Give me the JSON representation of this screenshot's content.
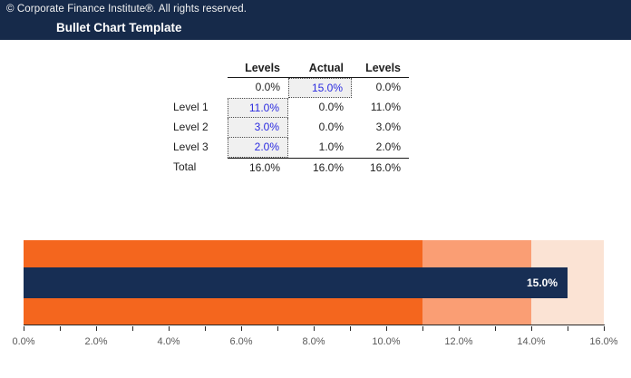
{
  "header": {
    "copyright": "© Corporate Finance Institute®. All rights reserved.",
    "title": "Bullet Chart Template",
    "background": "#162A4A"
  },
  "table": {
    "columns": [
      "",
      "Levels",
      "Actual",
      "Levels"
    ],
    "rows": [
      {
        "label": "",
        "cells": [
          {
            "text": "0.0%"
          },
          {
            "text": "15.0%"
          },
          {
            "text": "0.0%"
          }
        ]
      },
      {
        "label": "Level 1",
        "cells": [
          {
            "text": "11.0%"
          },
          {
            "text": "0.0%"
          },
          {
            "text": "11.0%"
          }
        ]
      },
      {
        "label": "Level 2",
        "cells": [
          {
            "text": "3.0%"
          },
          {
            "text": "0.0%"
          },
          {
            "text": "3.0%"
          }
        ]
      },
      {
        "label": "Level 3",
        "cells": [
          {
            "text": "2.0%"
          },
          {
            "text": "1.0%"
          },
          {
            "text": "2.0%"
          }
        ]
      },
      {
        "label": "Total",
        "cells": [
          {
            "text": "16.0%"
          },
          {
            "text": "16.0%"
          },
          {
            "text": "16.0%"
          }
        ]
      }
    ],
    "input_text_color": "#2B2BE0",
    "input_bg": "#F0F0F0"
  },
  "chart_data": {
    "type": "bar",
    "subtype": "bullet",
    "orientation": "horizontal",
    "ranges": [
      {
        "name": "Level 1",
        "start": 0,
        "end": 11,
        "color": "#F4661E"
      },
      {
        "name": "Level 2",
        "start": 11,
        "end": 14,
        "color": "#FA9E74"
      },
      {
        "name": "Level 3",
        "start": 14,
        "end": 16,
        "color": "#FBE3D4"
      }
    ],
    "measure": {
      "name": "Actual",
      "value": 15,
      "label": "15.0%",
      "color": "#172E54"
    },
    "axis": {
      "min": 0,
      "max": 16,
      "tick_step": 1,
      "label_step": 2,
      "tick_labels": [
        "0.0%",
        "2.0%",
        "4.0%",
        "6.0%",
        "8.0%",
        "10.0%",
        "12.0%",
        "14.0%",
        "16.0%"
      ],
      "tick_color": "#262626",
      "label_color": "#595959"
    },
    "grid": false,
    "legend": false,
    "title": ""
  }
}
